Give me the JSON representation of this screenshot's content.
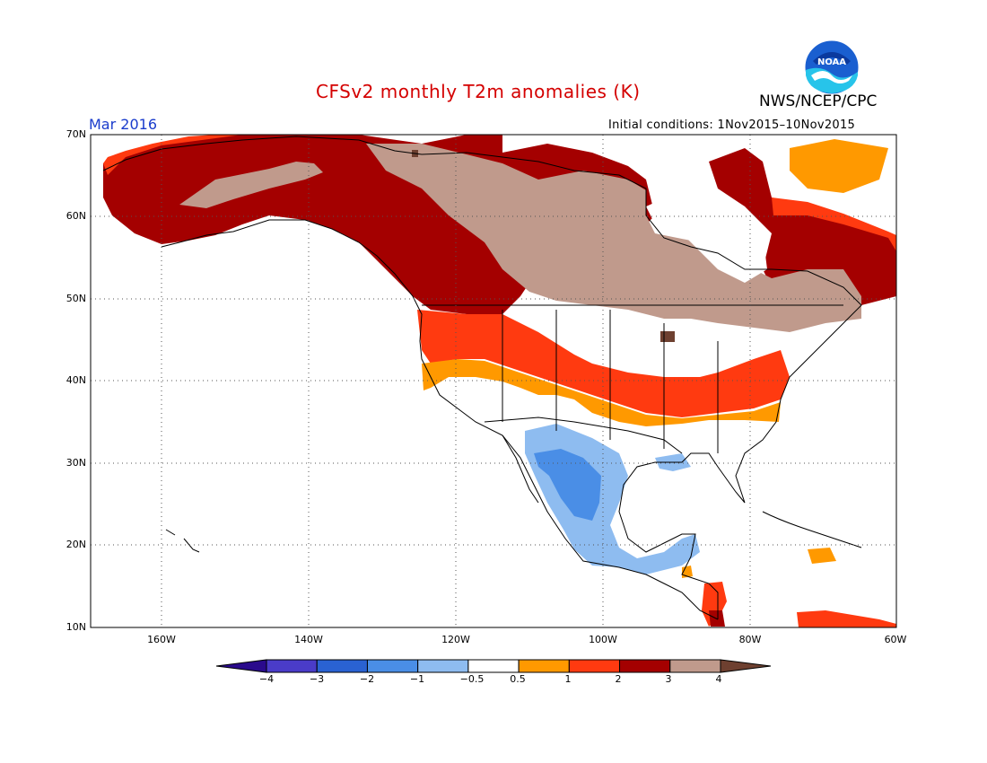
{
  "header": {
    "title": "CFSv2 monthly T2m anomalies (K)",
    "agency": "NWS/NCEP/CPC",
    "month": "Mar 2016",
    "initial_conditions": "Initial conditions: 1Nov2015–10Nov2015"
  },
  "logo": {
    "text": "NOAA",
    "icon": "noaa-logo-icon"
  },
  "map": {
    "region": "North America",
    "latitude_labels": [
      "70N",
      "60N",
      "50N",
      "40N",
      "30N",
      "20N",
      "10N"
    ],
    "longitude_labels": [
      "160W",
      "140W",
      "120W",
      "100W",
      "80W",
      "60W"
    ],
    "grid": "dotted"
  },
  "colorbar": {
    "labels": [
      "−4",
      "−3",
      "−2",
      "−1",
      "−0.5",
      "0.5",
      "1",
      "2",
      "3",
      "4"
    ],
    "colors": [
      "#2a0a8c",
      "#4a3cc8",
      "#2a62d2",
      "#4a8ee6",
      "#8ebcf0",
      "#ffffff",
      "#ff9900",
      "#ff3a10",
      "#a40000",
      "#c09a8c",
      "#6e4030"
    ]
  }
}
